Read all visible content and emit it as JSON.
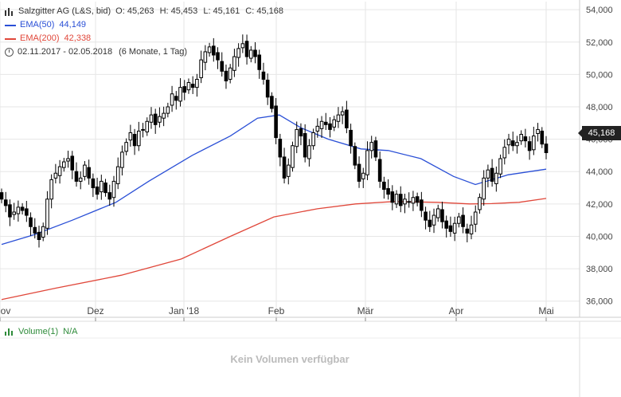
{
  "legend": {
    "instrument": "Salzgitter AG (L&S, bid)",
    "open": "O: 45,263",
    "high": "H: 45,453",
    "low": "L: 45,161",
    "close": "C: 45,168",
    "ema50_label": "EMA(50)",
    "ema50_value": "44,149",
    "ema200_label": "EMA(200)",
    "ema200_value": "42,338",
    "range": "02.11.2017 - 02.05.2018",
    "range_detail": "(6 Monate, 1 Tag)"
  },
  "last_price": "45,168",
  "volume": {
    "label": "Volume(1)",
    "value": "N/A",
    "message": "Kein Volumen verfügbar"
  },
  "colors": {
    "ema50": "#2a4fd6",
    "ema200": "#e0473a",
    "candle": "#000000",
    "grid": "#e6e6e6"
  },
  "chart_data": {
    "type": "candlestick",
    "x_range": [
      "2017-11-02",
      "2018-05-02"
    ],
    "ylim": [
      35000,
      54500
    ],
    "y_ticks": [
      "36,000",
      "38,000",
      "40,000",
      "42,000",
      "44,000",
      "46,000",
      "48,000",
      "50,000",
      "52,000",
      "54,000"
    ],
    "x_ticks": [
      "Nov",
      "Dez",
      "Jan '18",
      "Feb",
      "Mär",
      "Apr",
      "Mai"
    ],
    "close_series": [
      42.3,
      41.9,
      41.2,
      41.5,
      41.8,
      41.6,
      41.3,
      40.6,
      40.2,
      39.8,
      40.6,
      42.3,
      43.5,
      43.9,
      44.3,
      44.6,
      44.8,
      44.1,
      43.4,
      43.6,
      44.4,
      43.6,
      43.0,
      42.6,
      43.4,
      42.7,
      42.3,
      43.4,
      44.3,
      45.2,
      45.8,
      46.4,
      45.6,
      46.5,
      46.6,
      47.1,
      47.5,
      46.9,
      47.4,
      47.6,
      48.0,
      48.8,
      48.4,
      49.2,
      48.9,
      49.5,
      49.2,
      49.7,
      50.9,
      51.4,
      51.7,
      51.2,
      50.9,
      50.2,
      49.6,
      50.4,
      51.1,
      51.6,
      51.9,
      51.1,
      51.5,
      51.1,
      50.3,
      49.7,
      48.6,
      47.9,
      46.1,
      44.9,
      43.6,
      44.4,
      45.6,
      46.6,
      46.2,
      44.9,
      45.6,
      46.4,
      46.8,
      47.1,
      46.9,
      46.6,
      47.2,
      47.5,
      47.7,
      46.7,
      45.6,
      44.4,
      43.4,
      43.9,
      45.3,
      45.8,
      44.9,
      43.4,
      42.9,
      42.6,
      42.1,
      42.6,
      41.9,
      42.3,
      42.1,
      42.4,
      42.1,
      41.6,
      41.0,
      40.6,
      41.3,
      41.7,
      40.9,
      40.5,
      40.3,
      40.8,
      41.2,
      40.6,
      40.2,
      40.7,
      41.5,
      42.4,
      43.6,
      44.1,
      43.4,
      43.9,
      44.8,
      45.5,
      46.0,
      45.6,
      45.8,
      46.3,
      45.9,
      45.3,
      46.2,
      46.6,
      45.7,
      45.168
    ],
    "series": [
      {
        "name": "EMA(50)",
        "values": [
          39.5,
          40.1,
          41.0,
          42.1,
          43.4,
          45.0,
          46.2,
          47.3,
          47.5,
          46.7,
          46.0,
          45.4,
          45.3,
          44.8,
          43.7,
          43.2,
          43.8,
          44.15
        ],
        "x_frac": [
          0,
          0.06,
          0.13,
          0.21,
          0.27,
          0.35,
          0.42,
          0.47,
          0.51,
          0.55,
          0.6,
          0.66,
          0.71,
          0.77,
          0.83,
          0.87,
          0.93,
          1.0
        ]
      },
      {
        "name": "EMA(200)",
        "values": [
          36.1,
          36.8,
          37.6,
          38.6,
          40.0,
          41.2,
          41.7,
          42.0,
          42.15,
          42.1,
          42.0,
          42.02,
          42.1,
          42.34
        ],
        "x_frac": [
          0,
          0.1,
          0.22,
          0.33,
          0.42,
          0.5,
          0.58,
          0.65,
          0.72,
          0.8,
          0.86,
          0.9,
          0.95,
          1.0
        ]
      }
    ],
    "grid": true,
    "legend_position": "top-left"
  }
}
